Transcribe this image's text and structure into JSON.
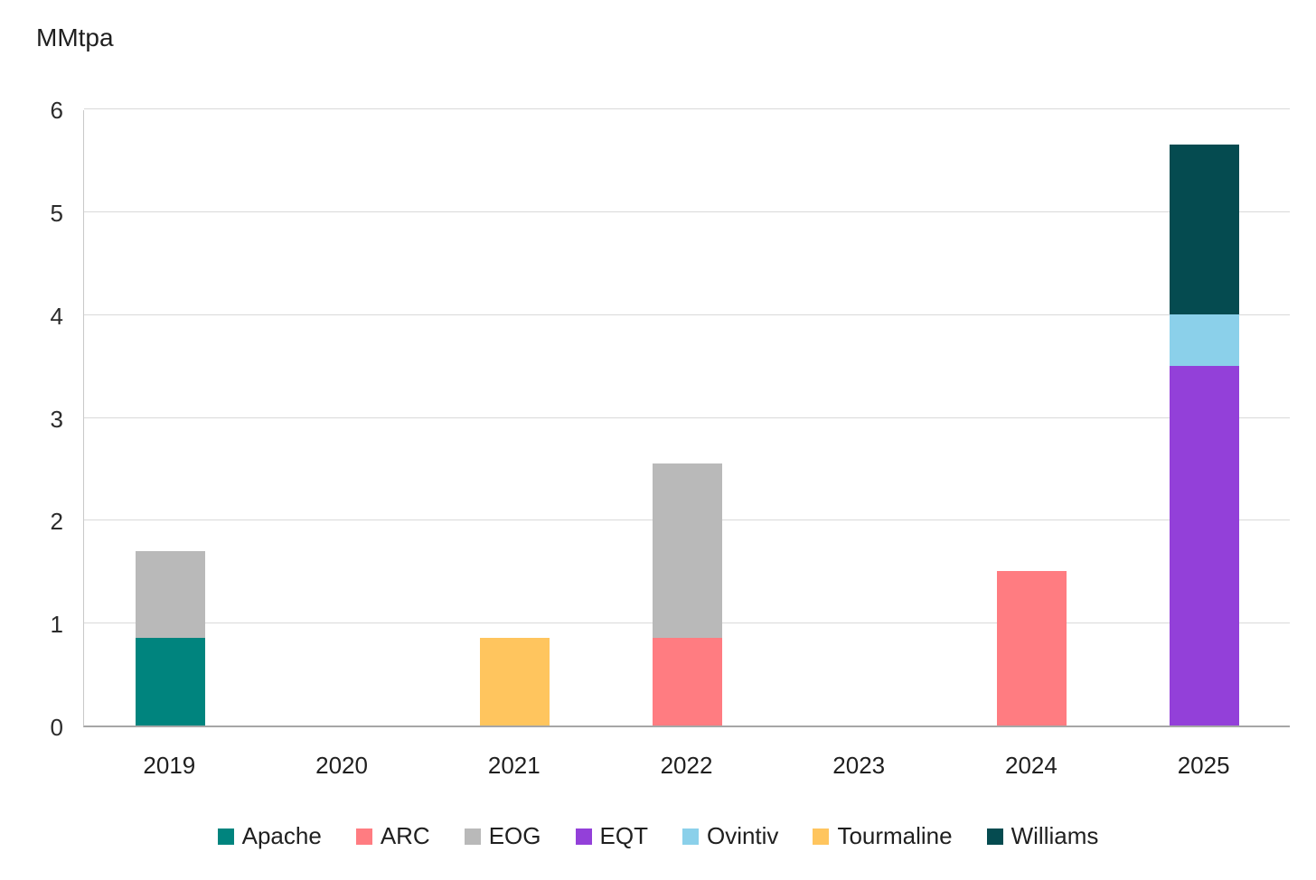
{
  "title": "MMtpa",
  "colors": {
    "Apache": "#00847e",
    "ARC": "#ff7c81",
    "EOG": "#b9b9b9",
    "EQT": "#9340d9",
    "Ovintiv": "#8bd0ea",
    "Tourmaline": "#ffc55e",
    "Williams": "#054b50"
  },
  "style_colors": {
    "gridline": "#d9d9d9",
    "axis_line": "#a6a6a6",
    "left_axis_line": "#c9c9c9",
    "text": "#1f1f1f"
  },
  "chart_data": {
    "type": "bar",
    "stacked": true,
    "title": "MMtpa",
    "xlabel": "",
    "ylabel": "MMtpa",
    "ylim": [
      0,
      6
    ],
    "yticks": [
      0,
      1,
      2,
      3,
      4,
      5,
      6
    ],
    "grid": true,
    "legend_position": "bottom",
    "categories": [
      "2019",
      "2020",
      "2021",
      "2022",
      "2023",
      "2024",
      "2025"
    ],
    "series": [
      {
        "name": "Apache",
        "values": [
          0.85,
          0,
          0,
          0,
          0,
          0,
          0
        ]
      },
      {
        "name": "ARC",
        "values": [
          0,
          0,
          0,
          0.85,
          0,
          1.5,
          0
        ]
      },
      {
        "name": "EOG",
        "values": [
          0.85,
          0,
          0,
          1.7,
          0,
          0,
          0
        ]
      },
      {
        "name": "EQT",
        "values": [
          0,
          0,
          0,
          0,
          0,
          0,
          3.5
        ]
      },
      {
        "name": "Ovintiv",
        "values": [
          0,
          0,
          0,
          0,
          0,
          0,
          0.5
        ]
      },
      {
        "name": "Tourmaline",
        "values": [
          0,
          0,
          0.85,
          0,
          0,
          0,
          0
        ]
      },
      {
        "name": "Williams",
        "values": [
          0,
          0,
          0,
          0,
          0,
          0,
          1.65
        ]
      }
    ],
    "totals": {
      "2019": 1.7,
      "2020": 0,
      "2021": 0.85,
      "2022": 2.55,
      "2023": 0,
      "2024": 1.5,
      "2025": 5.65
    }
  },
  "legend": {
    "items": [
      {
        "label": "Apache"
      },
      {
        "label": "ARC"
      },
      {
        "label": "EOG"
      },
      {
        "label": "EQT"
      },
      {
        "label": "Ovintiv"
      },
      {
        "label": "Tourmaline"
      },
      {
        "label": "Williams"
      }
    ]
  }
}
